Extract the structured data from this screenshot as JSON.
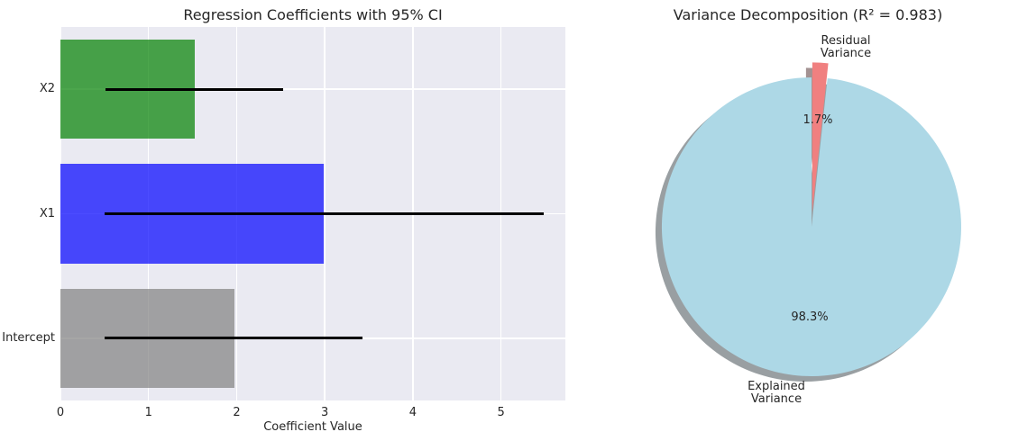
{
  "figure": {
    "background": "#ffffff"
  },
  "chart_data": [
    {
      "type": "bar",
      "orientation": "horizontal",
      "title": "Regression Coefficients with 95% CI",
      "xlabel": "Coefficient Value",
      "series": [
        {
          "label": "Intercept",
          "value": 1.97,
          "ci": [
            0.5,
            3.43
          ],
          "color": "rgba(128,128,128,0.7)"
        },
        {
          "label": "X1",
          "value": 2.99,
          "ci": [
            0.5,
            5.48
          ],
          "color": "rgba(0,0,255,0.7)"
        },
        {
          "label": "X2",
          "value": 1.52,
          "ci": [
            0.51,
            2.53
          ],
          "color": "rgba(0,128,0,0.7)"
        }
      ],
      "xticks": [
        0,
        1,
        2,
        3,
        4,
        5
      ],
      "xlim": [
        0,
        5.73
      ],
      "grid": true,
      "plot_bg": "#eaeaf2",
      "grid_color": "#ffffff",
      "errorbar_color": "#000000",
      "legend": "none",
      "ci_level": "95% CI"
    },
    {
      "type": "pie",
      "title": "Variance Decomposition (R² = 0.983)",
      "slices": [
        {
          "label": "Explained Variance",
          "value": 98.3,
          "pct_label": "98.3%",
          "color": "#ADD8E6",
          "explode": 0
        },
        {
          "label": "Residual Variance",
          "value": 1.7,
          "pct_label": "1.7%",
          "color": "#F08080",
          "explode": 0.1
        }
      ],
      "startangle": 90,
      "counterclock": true,
      "shadow": true
    }
  ]
}
